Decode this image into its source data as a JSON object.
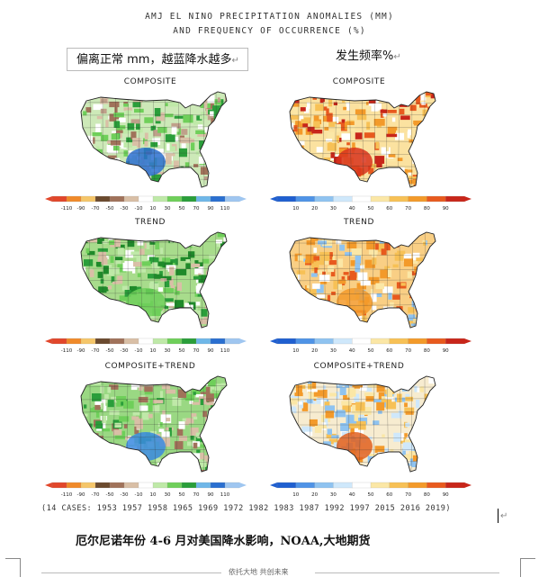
{
  "document": {
    "title_line1": "AMJ EL NINO PRECIPITATION ANOMALIES (MM)",
    "title_line2": "AND FREQUENCY OF OCCURRENCE (%)",
    "note_left": "偏离正常 mm，越蓝降水越多",
    "note_right": "发生频率%",
    "paragraph_mark": "↵",
    "cases": "(14 CASES:   1953 1957 1958 1965 1969 1972 1982 1983 1987 1992 1997 2015 2016 2019)",
    "caption": "厄尔尼诺年份 4-6 月对美国降水影响，NOAA,大地期货",
    "footer": "依托大地    共创未来"
  },
  "panels": {
    "left": [
      {
        "label": "COMPOSITE"
      },
      {
        "label": "TREND"
      },
      {
        "label": "COMPOSITE+TREND"
      }
    ],
    "right": [
      {
        "label": "COMPOSITE"
      },
      {
        "label": "TREND"
      },
      {
        "label": "COMPOSITE+TREND"
      }
    ]
  },
  "colorbars": {
    "anomaly": {
      "ticks": [
        "-110",
        "-90",
        "-70",
        "-50",
        "-30",
        "-10",
        "10",
        "30",
        "50",
        "70",
        "90",
        "110"
      ],
      "colors": [
        "#e2462a",
        "#f08a2a",
        "#f5c66a",
        "#6b4a2e",
        "#a0725a",
        "#d9bfa6",
        "#ffffff",
        "#bfe9a8",
        "#6fcf5a",
        "#2a9e3a",
        "#6fb7e8",
        "#2a6fd0",
        "#9fc6f0"
      ]
    },
    "frequency": {
      "ticks": [
        "10",
        "20",
        "30",
        "40",
        "50",
        "60",
        "70",
        "80",
        "90"
      ],
      "colors": [
        "#1f5fd0",
        "#4f93e6",
        "#8fc3f0",
        "#cfe8fb",
        "#ffffff",
        "#fbe7a6",
        "#f7c156",
        "#f39a2a",
        "#e85a1e",
        "#c8261a"
      ]
    }
  }
}
